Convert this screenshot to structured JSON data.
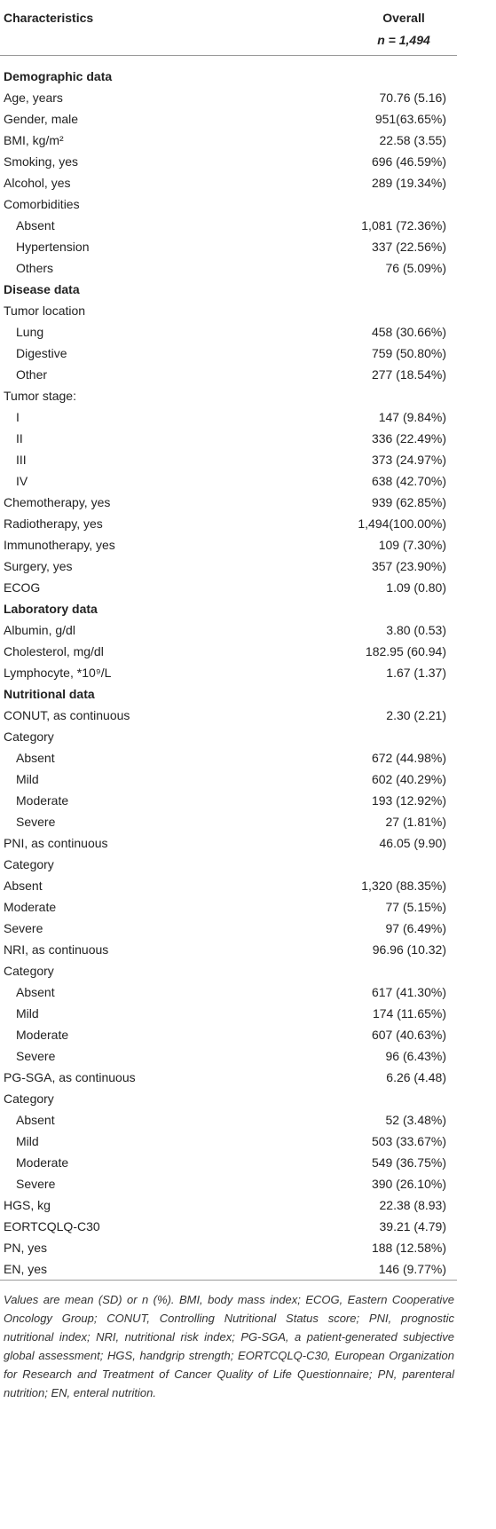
{
  "table": {
    "header": [
      "Characteristics",
      "Overall",
      "n = 1,494"
    ],
    "sections": [
      {
        "title": "Demographic data",
        "rows": [
          [
            "Age, years",
            "70.76 (5.16)"
          ],
          [
            "Gender, male",
            "951(63.65%)"
          ],
          [
            "BMI, kg/m²",
            "22.58 (3.55)"
          ],
          [
            "Smoking, yes",
            "696 (46.59%)"
          ],
          [
            "Alcohol, yes",
            "289 (19.34%)"
          ],
          [
            "Comorbidities"
          ],
          [
            "Absent",
            "1,081 (72.36%)"
          ],
          [
            "Hypertension",
            "337 (22.56%)"
          ],
          [
            "Others",
            "76 (5.09%)"
          ]
        ]
      },
      {
        "title": "Disease data",
        "rows": [
          [
            "Tumor location"
          ],
          [
            "Lung",
            "458 (30.66%)"
          ],
          [
            "Digestive",
            "759 (50.80%)"
          ],
          [
            "Other",
            "277 (18.54%)"
          ],
          [
            "Tumor stage:"
          ],
          [
            "I",
            "147 (9.84%)"
          ],
          [
            "II",
            "336 (22.49%)"
          ],
          [
            "III",
            "373 (24.97%)"
          ],
          [
            "IV",
            "638 (42.70%)"
          ],
          [
            "Chemotherapy, yes",
            "939 (62.85%)"
          ],
          [
            "Radiotherapy, yes",
            "1,494(100.00%)"
          ],
          [
            "Immunotherapy, yes",
            "109 (7.30%)"
          ],
          [
            "Surgery, yes",
            "357 (23.90%)"
          ],
          [
            "ECOG",
            "1.09 (0.80)"
          ]
        ]
      },
      {
        "title": "Laboratory data",
        "rows": [
          [
            "Albumin, g/dl",
            "3.80 (0.53)"
          ],
          [
            "Cholesterol, mg/dl",
            "182.95 (60.94)"
          ],
          [
            "Lymphocyte, *10⁹/L",
            "1.67 (1.37)"
          ]
        ]
      },
      {
        "title": "Nutritional data",
        "rows": [
          [
            "CONUT, as continuous",
            "2.30 (2.21)"
          ],
          [
            "Category"
          ],
          [
            "Absent",
            "672 (44.98%)"
          ],
          [
            "Mild",
            "602 (40.29%)"
          ],
          [
            "Moderate",
            "193 (12.92%)"
          ],
          [
            "Severe",
            "27 (1.81%)"
          ],
          [
            "PNI, as continuous",
            "46.05 (9.90)"
          ],
          [
            "Category"
          ],
          [
            "Absent",
            "1,320 (88.35%)"
          ],
          [
            "Moderate",
            "77 (5.15%)"
          ],
          [
            "Severe",
            "97 (6.49%)"
          ],
          [
            "NRI, as continuous",
            "96.96 (10.32)"
          ],
          [
            "Category"
          ],
          [
            "Absent",
            "617 (41.30%)"
          ],
          [
            "Mild",
            "174 (11.65%)"
          ],
          [
            "Moderate",
            "607 (40.63%)"
          ],
          [
            "Severe",
            "96 (6.43%)"
          ],
          [
            "PG-SGA, as continuous",
            "6.26 (4.48)"
          ],
          [
            "Category"
          ],
          [
            "Absent",
            "52 (3.48%)"
          ],
          [
            "Mild",
            "503 (33.67%)"
          ],
          [
            "Moderate",
            "549 (36.75%)"
          ],
          [
            "Severe",
            "390 (26.10%)"
          ],
          [
            "HGS, kg",
            "22.38 (8.93)"
          ],
          [
            "EORTCQLQ-C30",
            "39.21 (4.79)"
          ],
          [
            "PN, yes",
            "188 (12.58%)"
          ],
          [
            "EN, yes",
            "146 (9.77%)"
          ]
        ]
      }
    ],
    "footnote": "Values are mean (SD) or n (%). BMI, body mass index; ECOG, Eastern Cooperative Oncology Group; CONUT, Controlling Nutritional Status score; PNI, prognostic nutritional index; NRI, nutritional risk index; PG-SGA, a patient-generated subjective global assessment; HGS, handgrip strength; EORTCQLQ-C30, European Organization for Research and Treatment of Cancer Quality of Life Questionnaire; PN, parenteral nutrition; EN, enteral nutrition."
  }
}
